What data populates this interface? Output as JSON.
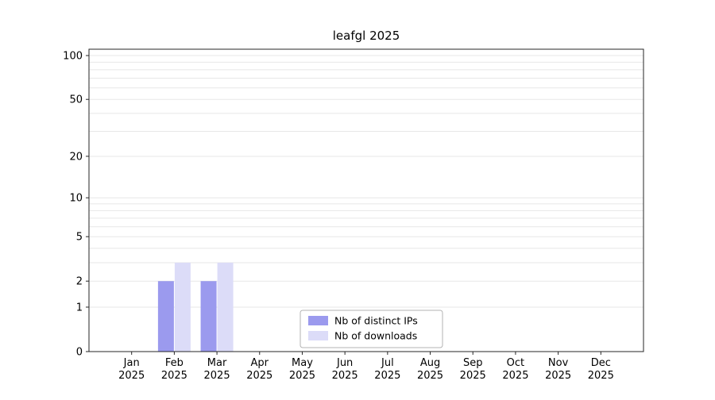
{
  "chart_data": {
    "type": "bar",
    "title": "leafgl 2025",
    "categories": [
      "Jan",
      "Feb",
      "Mar",
      "Apr",
      "May",
      "Jun",
      "Jul",
      "Aug",
      "Sep",
      "Oct",
      "Nov",
      "Dec"
    ],
    "year": "2025",
    "series": [
      {
        "name": "Nb of distinct IPs",
        "color": "#9b9aee",
        "values": [
          0,
          2,
          2,
          0,
          0,
          0,
          0,
          0,
          0,
          0,
          0,
          0
        ]
      },
      {
        "name": "Nb of downloads",
        "color": "#dcdcf8",
        "values": [
          0,
          3,
          3,
          0,
          0,
          0,
          0,
          0,
          0,
          0,
          0,
          0
        ]
      }
    ],
    "yscale": "log1p",
    "ylim": [
      0,
      100
    ],
    "ytick_values": [
      0,
      1,
      2,
      5,
      10,
      20,
      50,
      100
    ],
    "gridline_values": [
      1,
      2,
      3,
      4,
      5,
      6,
      7,
      8,
      9,
      10,
      20,
      30,
      40,
      50,
      60,
      70,
      80,
      90,
      100
    ],
    "grid_color": "#e7e7e7",
    "axis_color": "#262626",
    "legend": {
      "position": "bottom-center",
      "border_color": "#b3b3b3",
      "background": "#ffffff"
    }
  }
}
